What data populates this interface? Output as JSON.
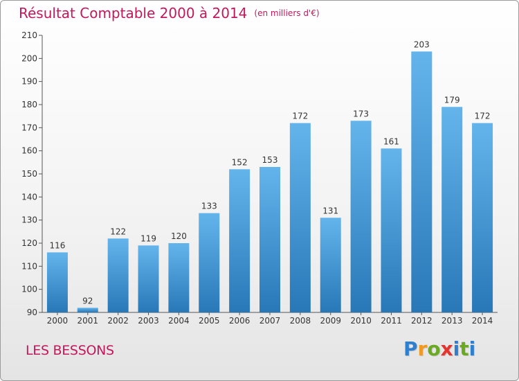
{
  "header": {
    "title": "Résultat Comptable 2000 à 2014",
    "unit": "(en milliers d'€)"
  },
  "footer": {
    "place": "LES BESSONS",
    "logo": "Proxiti"
  },
  "colors": {
    "bar_top": "#64b4ec",
    "bar_bottom": "#2878b8",
    "title": "#c2185b",
    "logo": [
      "#2f7fd1",
      "#f29a1f",
      "#6aa922",
      "#e3342f",
      "#2f7fd1",
      "#6aa922",
      "#2f7fd1"
    ]
  },
  "chart_data": {
    "type": "bar",
    "title": "Résultat Comptable 2000 à 2014",
    "categories": [
      "2000",
      "2001",
      "2002",
      "2003",
      "2004",
      "2005",
      "2006",
      "2007",
      "2008",
      "2009",
      "2010",
      "2011",
      "2012",
      "2013",
      "2014"
    ],
    "values": [
      116,
      92,
      122,
      119,
      120,
      133,
      152,
      153,
      172,
      131,
      173,
      161,
      203,
      179,
      172
    ],
    "ylim": [
      90,
      210
    ],
    "yticks": [
      90,
      100,
      110,
      120,
      130,
      140,
      150,
      160,
      170,
      180,
      190,
      200,
      210
    ],
    "grid": false,
    "legend": "none"
  }
}
